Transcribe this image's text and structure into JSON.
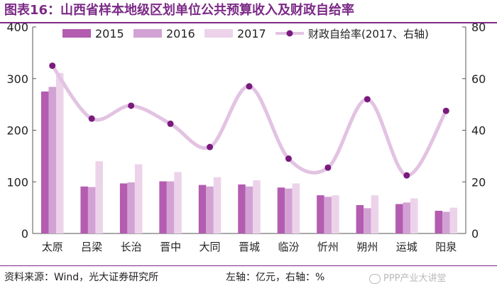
{
  "title": "图表16：山西省样本地级区划单位公共预算收入及财政自给率",
  "footer": {
    "source": "资料来源：Wind，光大证券研究所",
    "axis_note": "左轴：亿元，右轴：%"
  },
  "watermark": "PPP产业大讲堂",
  "colors": {
    "title": "#7b2a86",
    "s2015": "#b35cb0",
    "s2016": "#d3a2d4",
    "s2017": "#ecd3ea",
    "line": "#e2c3e2",
    "marker": "#7a1a7e"
  },
  "chart_data": {
    "type": "bar",
    "categories": [
      "太原",
      "吕梁",
      "长治",
      "晋中",
      "大同",
      "晋城",
      "临汾",
      "忻州",
      "朔州",
      "运城",
      "阳泉"
    ],
    "series": [
      {
        "name": "2015",
        "values": [
          275,
          91,
          97,
          101,
          94,
          95,
          89,
          74,
          55,
          57,
          44
        ]
      },
      {
        "name": "2016",
        "values": [
          284,
          90,
          99,
          101,
          91,
          91,
          87,
          71,
          49,
          60,
          42
        ]
      },
      {
        "name": "2017",
        "values": [
          311,
          140,
          134,
          119,
          109,
          103,
          97,
          74,
          74,
          68,
          50
        ]
      }
    ],
    "line_series": {
      "name": "财政自给率(2017、右轴)",
      "axis": "right",
      "values": [
        65,
        44.5,
        49.5,
        42.5,
        33.5,
        57,
        29,
        25.5,
        52,
        22.5,
        47.5
      ]
    },
    "ylim_left": [
      0,
      400
    ],
    "yticks_left": [
      "0",
      "100",
      "200",
      "300",
      "400"
    ],
    "ylim_right": [
      0,
      80
    ],
    "yticks_right": [
      "0",
      "20",
      "40",
      "60",
      "80"
    ],
    "legend": {
      "position": "top",
      "labels": [
        "2015",
        "2016",
        "2017",
        "财政自给率(2017、右轴)"
      ]
    },
    "grid": false
  }
}
